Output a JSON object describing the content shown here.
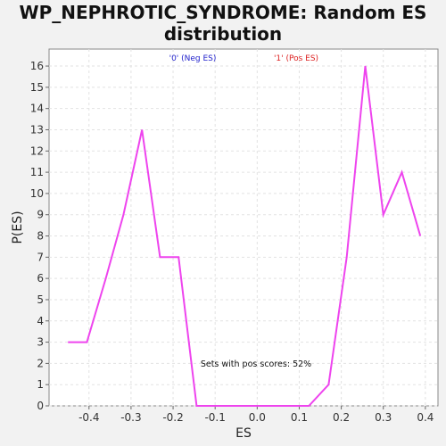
{
  "chart_data": {
    "type": "line",
    "title": "WP_NEPHROTIC_SYNDROME: Random ES distribution",
    "xlabel": "ES",
    "ylabel": "P(ES)",
    "xlim": [
      -0.495,
      0.43
    ],
    "ylim": [
      0,
      16.8
    ],
    "x_ticks": [
      -0.4,
      -0.3,
      -0.2,
      -0.1,
      0.0,
      0.1,
      0.2,
      0.3,
      0.4
    ],
    "x_tick_labels": [
      "-0.4",
      "-0.3",
      "-0.2",
      "-0.1",
      "0.0",
      "0.1",
      "0.2",
      "0.3",
      "0.4"
    ],
    "y_ticks": [
      0,
      1,
      2,
      3,
      4,
      5,
      6,
      7,
      8,
      9,
      10,
      11,
      12,
      13,
      14,
      15,
      16
    ],
    "grid": true,
    "legend": [
      {
        "label": "'0' (Neg ES)",
        "color": "#2222cc"
      },
      {
        "label": "'1' (Pos ES)",
        "color": "#dd2222"
      }
    ],
    "annotation": "Sets with pos scores: 52%",
    "series": [
      {
        "color": "#ee44ee",
        "x": [
          -0.45,
          -0.405,
          -0.36,
          -0.318,
          -0.274,
          -0.231,
          -0.187,
          -0.144,
          -0.101,
          -0.058,
          -0.014,
          0.029,
          0.072,
          0.123,
          0.17,
          0.213,
          0.257,
          0.3,
          0.344,
          0.388
        ],
        "y": [
          3,
          3,
          6,
          9,
          13,
          7,
          7,
          0,
          0,
          0,
          0,
          0,
          0,
          0,
          1,
          7,
          16,
          9,
          11,
          8
        ]
      }
    ]
  }
}
